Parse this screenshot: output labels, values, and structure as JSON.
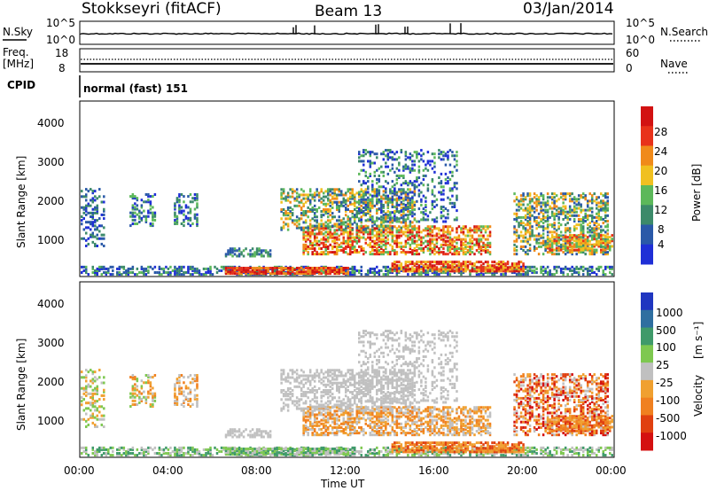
{
  "header": {
    "station": "Stokkseyri (fitACF)",
    "beam": "Beam 13",
    "date": "03/Jan/2014"
  },
  "noise_panel": {
    "left_label": "N.Sky",
    "right_label": "N.Search",
    "left_ticks": [
      "10^5",
      "10^0"
    ],
    "right_ticks": [
      "10^5",
      "10^0"
    ]
  },
  "freq_panel": {
    "left_label_1": "Freq.",
    "left_label_2": "[MHz]",
    "right_label": "Nave",
    "left_ticks": [
      "18",
      "8"
    ],
    "right_ticks": [
      "60",
      "0"
    ]
  },
  "cpid_panel": {
    "label": "CPID",
    "value": "normal (fast) 151"
  },
  "chart_data": [
    {
      "type": "heatmap",
      "name": "power",
      "ylabel": "Slant Range [km]",
      "yticks": [
        "1000",
        "2000",
        "3000",
        "4000"
      ],
      "ylim": [
        180,
        4500
      ],
      "xlim": [
        0,
        24
      ],
      "colorbar_label": "Power [dB]",
      "colorbar_ticks": [
        "4",
        "8",
        "12",
        "16",
        "20",
        "24",
        "28"
      ],
      "colors": [
        "#1f2fd6",
        "#2a59a8",
        "#3c8a6a",
        "#5cb85a",
        "#f0c020",
        "#f08a1a",
        "#e8321a",
        "#d21212"
      ]
    },
    {
      "type": "heatmap",
      "name": "velocity",
      "ylabel": "Slant Range [km]",
      "yticks": [
        "1000",
        "2000",
        "3000",
        "4000"
      ],
      "ylim": [
        180,
        4500
      ],
      "xlim": [
        0,
        24
      ],
      "xlabel": "Time UT",
      "xticks": [
        "00:00",
        "04:00",
        "08:00",
        "12:00",
        "16:00",
        "20:00",
        "00:00"
      ],
      "colorbar_label_1": "Velocity",
      "colorbar_label_2": "[m s⁻¹]",
      "colorbar_ticks": [
        "1000",
        "500",
        "100",
        "25",
        "-25",
        "-100",
        "-500",
        "-1000"
      ],
      "colors": [
        "#2036c0",
        "#2f6fa0",
        "#3f9a6a",
        "#7ec850",
        "#c0c0c0",
        "#f0a030",
        "#f08020",
        "#e04010",
        "#d41010"
      ]
    }
  ]
}
